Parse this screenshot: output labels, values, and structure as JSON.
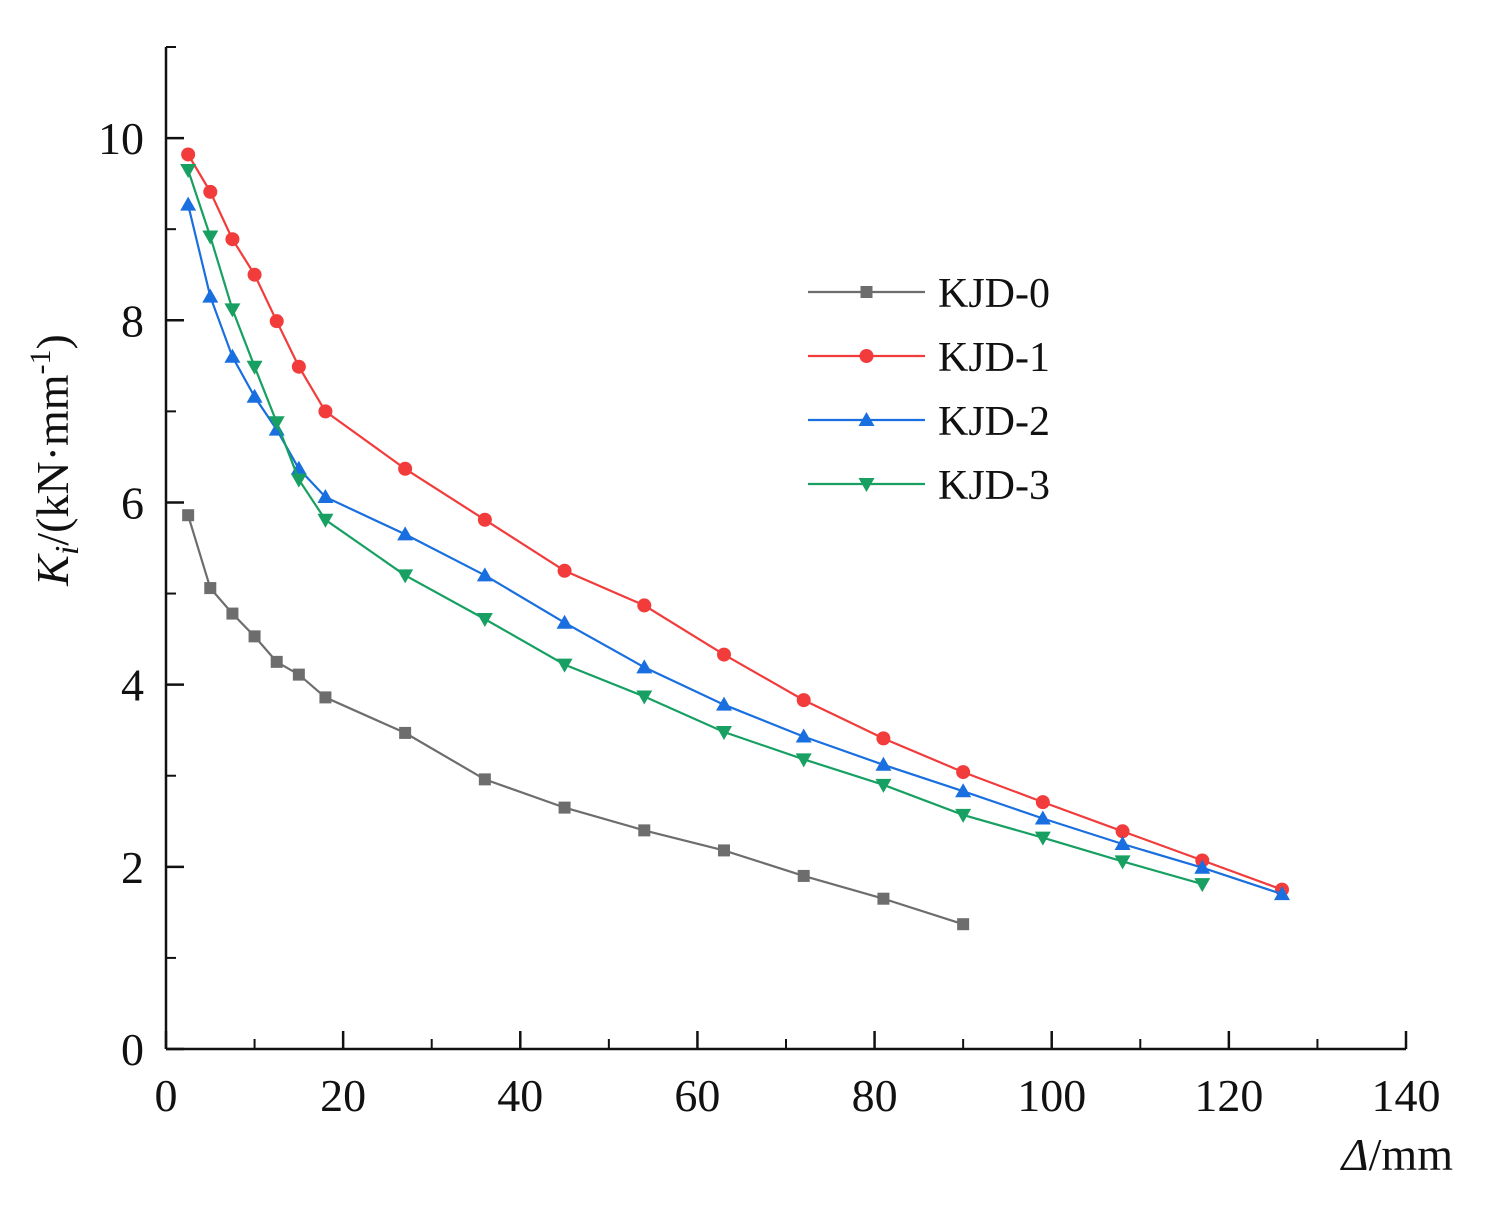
{
  "chart_data": {
    "type": "line",
    "title": "",
    "xlabel": {
      "symbol": "Δ",
      "unit": "/mm"
    },
    "ylabel": {
      "symbol": "K",
      "subscript": "i",
      "unit": "/(kN·mm",
      "superscript": "-1",
      "close": ")"
    },
    "xlim": [
      0,
      140
    ],
    "ylim": [
      0,
      11
    ],
    "xticks": [
      0,
      20,
      40,
      60,
      80,
      100,
      120,
      140
    ],
    "xtick_labels": [
      "0",
      "20",
      "40",
      "60",
      "80",
      "100",
      "120",
      "140"
    ],
    "yticks": [
      0,
      2,
      4,
      6,
      8,
      10
    ],
    "ytick_labels": [
      "0",
      "2",
      "4",
      "6",
      "8",
      "10"
    ],
    "grid": false,
    "legend_position": "upper-right-center",
    "series": [
      {
        "name": "KJD-0",
        "color": "#6d6d6d",
        "marker": "square",
        "x": [
          2.5,
          5,
          7.5,
          10,
          12.5,
          15,
          18,
          27,
          36,
          45,
          54,
          63,
          72,
          81,
          90
        ],
        "y": [
          5.86,
          5.06,
          4.78,
          4.53,
          4.25,
          4.11,
          3.86,
          3.47,
          2.96,
          2.65,
          2.4,
          2.18,
          1.9,
          1.65,
          1.37
        ]
      },
      {
        "name": "KJD-1",
        "color": "#f23b3b",
        "marker": "circle",
        "x": [
          2.5,
          5,
          7.5,
          10,
          12.5,
          15,
          18,
          27,
          36,
          45,
          54,
          63,
          72,
          81,
          90,
          99,
          108,
          117,
          126
        ],
        "y": [
          9.82,
          9.41,
          8.89,
          8.5,
          7.99,
          7.49,
          7.0,
          6.37,
          5.81,
          5.25,
          4.87,
          4.33,
          3.83,
          3.41,
          3.04,
          2.71,
          2.39,
          2.07,
          1.75
        ]
      },
      {
        "name": "KJD-2",
        "color": "#1a6fe0",
        "marker": "triangle-up",
        "x": [
          2.5,
          5,
          7.5,
          10,
          12.5,
          15,
          18,
          27,
          36,
          45,
          54,
          63,
          72,
          81,
          90,
          99,
          108,
          117,
          126
        ],
        "y": [
          9.27,
          8.26,
          7.6,
          7.16,
          6.8,
          6.37,
          6.06,
          5.65,
          5.2,
          4.68,
          4.19,
          3.78,
          3.43,
          3.12,
          2.83,
          2.53,
          2.25,
          1.99,
          1.7
        ]
      },
      {
        "name": "KJD-3",
        "color": "#17a062",
        "marker": "triangle-down",
        "x": [
          2.5,
          5,
          7.5,
          10,
          12.5,
          15,
          18,
          27,
          36,
          45,
          54,
          63,
          72,
          81,
          90,
          99,
          108,
          117
        ],
        "y": [
          9.65,
          8.92,
          8.12,
          7.49,
          6.88,
          6.25,
          5.81,
          5.2,
          4.72,
          4.22,
          3.87,
          3.48,
          3.18,
          2.9,
          2.57,
          2.32,
          2.06,
          1.81
        ]
      }
    ]
  }
}
